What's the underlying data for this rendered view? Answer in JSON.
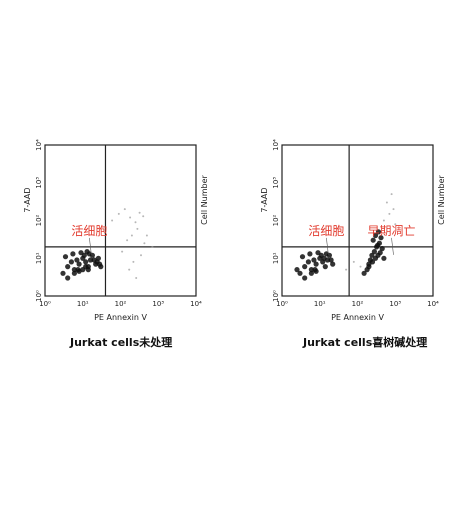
{
  "chart_data": [
    {
      "type": "scatter",
      "title": "",
      "xlabel": "PE Annexin V",
      "ylabel": "7-AAD",
      "y2label": "Cell Number",
      "xscale": "log",
      "yscale": "log",
      "xlim": [
        1,
        10000
      ],
      "ylim": [
        1,
        10000
      ],
      "x_tick_labels": [
        "10⁰",
        "10¹",
        "10²",
        "10³",
        "10⁴"
      ],
      "y_tick_labels": [
        "10⁰",
        "10¹",
        "10²",
        "10³",
        "10⁴"
      ],
      "gates": {
        "x": 40,
        "y": 20
      },
      "annotations": [
        {
          "text": "活细胞",
          "x": 5,
          "y": 60,
          "color": "#e23b2e"
        }
      ],
      "series": [
        {
          "label": "live-cells-cluster",
          "points_x": [
            3,
            4,
            5,
            6,
            7,
            8,
            10,
            12,
            14,
            16,
            18,
            22,
            26,
            30,
            3.5,
            5.5,
            7.5,
            9,
            11,
            13,
            15,
            20,
            24,
            28,
            4,
            6,
            8,
            10,
            12,
            14
          ],
          "points_y": [
            4,
            6,
            8,
            5,
            9,
            7,
            10,
            8,
            6,
            9,
            12,
            7,
            10,
            6,
            11,
            13,
            5,
            14,
            12,
            15,
            13,
            9,
            8,
            7,
            3,
            4,
            4.5,
            5,
            6,
            5
          ],
          "color": "#111111"
        },
        {
          "label": "scattered-events",
          "points_x": [
            60,
            90,
            130,
            180,
            250,
            320,
            400,
            150,
            200,
            280,
            110,
            500,
            700,
            220,
            350,
            170,
            260,
            430
          ],
          "points_y": [
            100,
            150,
            200,
            120,
            90,
            160,
            130,
            30,
            40,
            60,
            15,
            40,
            20,
            8,
            12,
            5,
            3,
            25
          ],
          "color": "#999999"
        }
      ],
      "caption": "Jurkat cells未处理"
    },
    {
      "type": "scatter",
      "title": "",
      "xlabel": "PE Annexin V",
      "ylabel": "7-AAD",
      "y2label": "Cell Number",
      "xscale": "log",
      "yscale": "log",
      "xlim": [
        1,
        10000
      ],
      "ylim": [
        1,
        10000
      ],
      "x_tick_labels": [
        "10⁰",
        "10¹",
        "10²",
        "10³",
        "10⁴"
      ],
      "y_tick_labels": [
        "10⁰",
        "10¹",
        "10²",
        "10³",
        "10⁴"
      ],
      "gates": {
        "x": 60,
        "y": 20
      },
      "annotations": [
        {
          "text": "活细胞",
          "x": 5,
          "y": 60,
          "color": "#e23b2e"
        },
        {
          "text": "早期凋亡",
          "x": 300,
          "y": 60,
          "color": "#e23b2e"
        }
      ],
      "series": [
        {
          "label": "live-cells-cluster",
          "points_x": [
            3,
            4,
            5,
            6,
            7,
            8,
            10,
            12,
            14,
            16,
            18,
            22,
            2.5,
            3.5,
            5.5,
            7.5,
            9,
            11,
            13,
            15,
            20,
            4,
            6,
            8
          ],
          "points_y": [
            4,
            6,
            8,
            5,
            9,
            7,
            10,
            8,
            6,
            9,
            12,
            7,
            5,
            11,
            13,
            5,
            14,
            12,
            10,
            13,
            9,
            3,
            4,
            4.5
          ],
          "color": "#111111"
        },
        {
          "label": "early-apoptotic-cluster",
          "points_x": [
            150,
            200,
            250,
            300,
            350,
            400,
            180,
            220,
            280,
            320,
            380,
            450,
            260,
            300,
            340,
            240,
            200,
            500,
            420,
            360
          ],
          "points_y": [
            4,
            6,
            8,
            10,
            12,
            14,
            5,
            9,
            15,
            20,
            25,
            18,
            30,
            40,
            22,
            12,
            7,
            10,
            35,
            50
          ],
          "color": "#111111"
        },
        {
          "label": "scattered-events",
          "points_x": [
            600,
            800,
            900,
            700,
            500,
            1000,
            50,
            80,
            120
          ],
          "points_y": [
            300,
            500,
            200,
            150,
            100,
            80,
            5,
            8,
            6
          ],
          "color": "#999999"
        }
      ],
      "caption": "Jurkat cells喜树碱处理"
    }
  ]
}
